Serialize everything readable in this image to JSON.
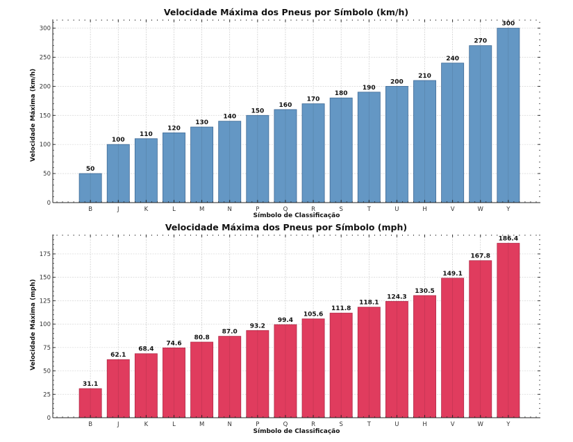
{
  "chart_data": [
    {
      "type": "bar",
      "title": "Velocidade Máxima dos Pneus por Símbolo (km/h)",
      "xlabel": "Símbolo de Classificação",
      "ylabel": "Velocidade Máxima (km/h)",
      "categories": [
        "B",
        "J",
        "K",
        "L",
        "M",
        "N",
        "P",
        "Q",
        "R",
        "S",
        "T",
        "U",
        "H",
        "V",
        "W",
        "Y"
      ],
      "values": [
        50,
        100,
        110,
        120,
        130,
        140,
        150,
        160,
        170,
        180,
        190,
        200,
        210,
        240,
        270,
        300
      ],
      "value_labels": [
        "50",
        "100",
        "110",
        "120",
        "130",
        "140",
        "150",
        "160",
        "170",
        "180",
        "190",
        "200",
        "210",
        "240",
        "270",
        "300"
      ],
      "ylim": [
        0,
        315
      ],
      "yticks": [
        0,
        50,
        100,
        150,
        200,
        250,
        300
      ],
      "ytick_labels": [
        "0",
        "50",
        "100",
        "150",
        "200",
        "250",
        "300"
      ],
      "grid": true,
      "color": "#6497c4",
      "edge_color": "#3f6a96"
    },
    {
      "type": "bar",
      "title": "Velocidade Máxima dos Pneus por Símbolo (mph)",
      "xlabel": "Símbolo de Classificação",
      "ylabel": "Velocidade Máxima (mph)",
      "categories": [
        "B",
        "J",
        "K",
        "L",
        "M",
        "N",
        "P",
        "Q",
        "R",
        "S",
        "T",
        "U",
        "H",
        "V",
        "W",
        "Y"
      ],
      "values": [
        31.1,
        62.1,
        68.4,
        74.6,
        80.8,
        87.0,
        93.2,
        99.4,
        105.6,
        111.8,
        118.1,
        124.3,
        130.5,
        149.1,
        167.8,
        186.4
      ],
      "value_labels": [
        "31.1",
        "62.1",
        "68.4",
        "74.6",
        "80.8",
        "87.0",
        "93.2",
        "99.4",
        "105.6",
        "111.8",
        "118.1",
        "124.3",
        "130.5",
        "149.1",
        "167.8",
        "186.4"
      ],
      "ylim": [
        0,
        195.7
      ],
      "yticks": [
        0,
        25,
        50,
        75,
        100,
        125,
        150,
        175
      ],
      "ytick_labels": [
        "0",
        "25",
        "50",
        "75",
        "100",
        "125",
        "150",
        "175"
      ],
      "grid": true,
      "color": "#e03c5e",
      "edge_color": "#b22a48"
    }
  ]
}
